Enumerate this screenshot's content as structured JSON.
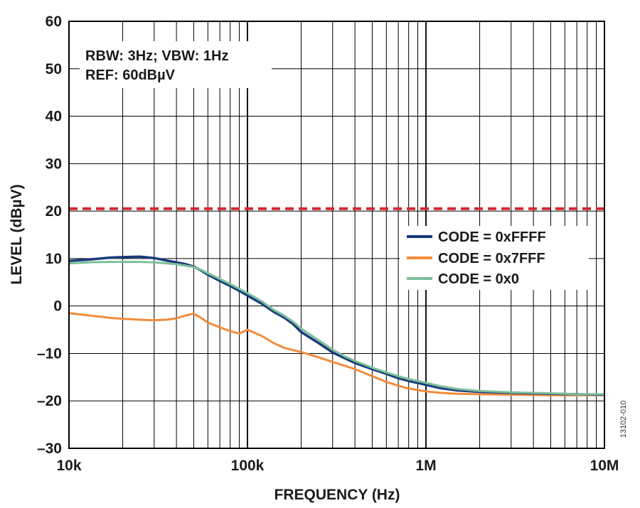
{
  "chart_data": {
    "type": "line",
    "xlabel": "FREQUENCY (Hz)",
    "ylabel": "LEVEL (dBµV)",
    "xscale": "log",
    "xlim": [
      10000,
      10000000
    ],
    "ylim": [
      -30,
      60
    ],
    "x_ticks": [
      {
        "value": 10000,
        "label": "10k"
      },
      {
        "value": 100000,
        "label": "100k"
      },
      {
        "value": 1000000,
        "label": "1M"
      },
      {
        "value": 10000000,
        "label": "10M"
      }
    ],
    "y_ticks": [
      {
        "value": 60,
        "label": "60"
      },
      {
        "value": 50,
        "label": "50"
      },
      {
        "value": 40,
        "label": "40"
      },
      {
        "value": 30,
        "label": "30"
      },
      {
        "value": 20,
        "label": "20"
      },
      {
        "value": 10,
        "label": "10"
      },
      {
        "value": 0,
        "label": "0"
      },
      {
        "value": -10,
        "label": "–10"
      },
      {
        "value": -20,
        "label": "–20"
      },
      {
        "value": -30,
        "label": "–30"
      }
    ],
    "grid": true,
    "annotations": [
      "RBW: 3Hz; VBW: 1Hz",
      "REF: 60dBµV"
    ],
    "limit_line": {
      "value": 20.5,
      "color": "#d7282f",
      "style": "dashed"
    },
    "legend_position": "right",
    "series": [
      {
        "name": "CODE = 0xFFFF",
        "color": "#1a3a7c",
        "x": [
          10000,
          13000,
          17000,
          20000,
          25000,
          30000,
          35000,
          40000,
          45000,
          50000,
          55000,
          60000,
          70000,
          80000,
          90000,
          100000,
          120000,
          140000,
          160000,
          180000,
          200000,
          250000,
          300000,
          350000,
          400000,
          500000,
          600000,
          700000,
          800000,
          1000000,
          1200000,
          1500000,
          2000000,
          3000000,
          5000000,
          7000000,
          10000000
        ],
        "y": [
          9.5,
          9.8,
          10.2,
          10.3,
          10.4,
          10.1,
          9.6,
          9.2,
          8.8,
          8.3,
          7.5,
          6.6,
          5.3,
          4.2,
          3.2,
          2.2,
          0.5,
          -1.2,
          -2.4,
          -3.8,
          -5.5,
          -7.8,
          -9.8,
          -11.0,
          -12.0,
          -13.3,
          -14.3,
          -15.2,
          -15.8,
          -16.6,
          -17.3,
          -17.8,
          -18.1,
          -18.3,
          -18.5,
          -18.6,
          -18.7
        ]
      },
      {
        "name": "CODE = 0x7FFF",
        "color": "#f28c3c",
        "x": [
          10000,
          13000,
          17000,
          20000,
          25000,
          30000,
          35000,
          40000,
          45000,
          50000,
          55000,
          60000,
          70000,
          80000,
          90000,
          100000,
          120000,
          140000,
          160000,
          180000,
          200000,
          250000,
          300000,
          350000,
          400000,
          500000,
          600000,
          700000,
          800000,
          1000000,
          1200000,
          1500000,
          2000000,
          3000000,
          5000000,
          7000000,
          10000000
        ],
        "y": [
          -1.5,
          -2.0,
          -2.5,
          -2.7,
          -2.9,
          -3.0,
          -2.9,
          -2.6,
          -2.0,
          -1.6,
          -2.5,
          -3.5,
          -4.5,
          -5.3,
          -5.8,
          -5.0,
          -6.3,
          -7.8,
          -8.8,
          -9.3,
          -9.7,
          -10.8,
          -11.8,
          -12.6,
          -13.3,
          -14.8,
          -16.0,
          -16.8,
          -17.4,
          -18.0,
          -18.3,
          -18.5,
          -18.6,
          -18.7,
          -18.8,
          -18.8,
          -18.8
        ]
      },
      {
        "name": "CODE = 0x0",
        "color": "#7cbf9a",
        "x": [
          10000,
          13000,
          17000,
          20000,
          25000,
          30000,
          35000,
          40000,
          45000,
          50000,
          55000,
          60000,
          70000,
          80000,
          90000,
          100000,
          120000,
          140000,
          160000,
          180000,
          200000,
          250000,
          300000,
          350000,
          400000,
          500000,
          600000,
          700000,
          800000,
          1000000,
          1200000,
          1500000,
          2000000,
          3000000,
          5000000,
          7000000,
          10000000
        ],
        "y": [
          9.0,
          9.2,
          9.3,
          9.3,
          9.3,
          9.2,
          9.0,
          8.8,
          8.5,
          8.2,
          7.6,
          6.9,
          5.7,
          4.6,
          3.6,
          2.7,
          1.0,
          -0.8,
          -2.0,
          -3.3,
          -4.8,
          -7.2,
          -9.2,
          -10.6,
          -11.6,
          -13.0,
          -14.0,
          -14.8,
          -15.4,
          -16.2,
          -16.9,
          -17.5,
          -17.9,
          -18.2,
          -18.4,
          -18.6,
          -18.6
        ]
      }
    ]
  },
  "figure_id": "13102-010"
}
